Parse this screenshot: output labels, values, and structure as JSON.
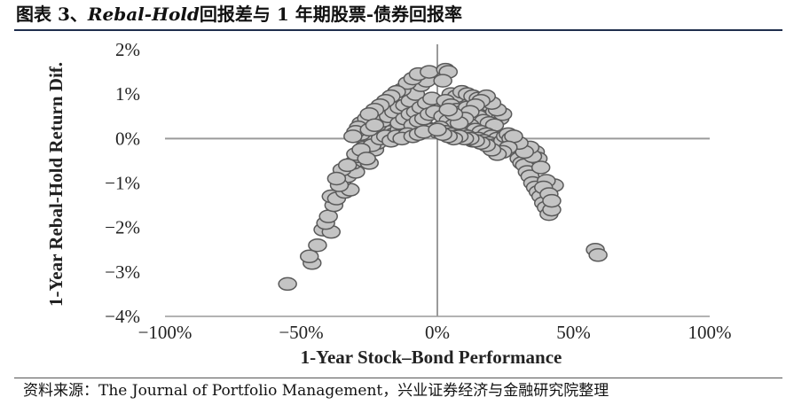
{
  "figure": {
    "title_prefix": "图表 3、",
    "title_italic": "Rebal-Hold",
    "title_suffix": "回报差与 1 年期股票-债券回报率",
    "source": "资料来源：The Journal of Portfolio Management，兴业证券经济与金融研究院整理"
  },
  "colors": {
    "marker_fill": "#c4c4c4",
    "marker_stroke": "#5a5a5a",
    "axis": "#9a9a9a",
    "rule": "#1f2e4d"
  },
  "chart_data": {
    "type": "scatter",
    "title": "",
    "xlabel": "1-Year Stock–Bond Performance",
    "ylabel": "1-Year Rebal-Hold Return Dif.",
    "xlim": [
      -100,
      100
    ],
    "ylim": [
      -4,
      2
    ],
    "xticks": [
      -100,
      -50,
      0,
      50,
      100
    ],
    "xtick_labels": [
      "−100%",
      "−50%",
      "0%",
      "50%",
      "100%"
    ],
    "yticks": [
      2,
      1,
      0,
      -1,
      -2,
      -3,
      -4
    ],
    "ytick_labels": [
      "2%",
      "1%",
      "0%",
      "−1%",
      "−2%",
      "−3%",
      "−4%"
    ],
    "grid": false,
    "legend": "none",
    "points": [
      [
        -55,
        -3.27
      ],
      [
        -46,
        -2.8
      ],
      [
        -47,
        -2.65
      ],
      [
        -44,
        -2.4
      ],
      [
        -42,
        -2.05
      ],
      [
        -39,
        -2.1
      ],
      [
        -41,
        -1.9
      ],
      [
        -40,
        -1.75
      ],
      [
        -38,
        -1.5
      ],
      [
        -39,
        -1.3
      ],
      [
        -37,
        -1.35
      ],
      [
        -34,
        -1.2
      ],
      [
        -32,
        -1.15
      ],
      [
        -35,
        -0.95
      ],
      [
        -33,
        -0.85
      ],
      [
        -30,
        -0.75
      ],
      [
        -31,
        -0.55
      ],
      [
        -27,
        -0.5
      ],
      [
        -25,
        -0.55
      ],
      [
        -29,
        -0.4
      ],
      [
        -26,
        -0.3
      ],
      [
        -23,
        -0.25
      ],
      [
        -22,
        -0.1
      ],
      [
        -24,
        0.0
      ],
      [
        -20,
        0.05
      ],
      [
        -18,
        0.15
      ],
      [
        -16,
        0.1
      ],
      [
        -14,
        0.2
      ],
      [
        -12,
        0.15
      ],
      [
        -10,
        0.25
      ],
      [
        -8,
        0.2
      ],
      [
        -6,
        0.3
      ],
      [
        -4,
        0.25
      ],
      [
        -2,
        0.2
      ],
      [
        0,
        0.15
      ],
      [
        -27,
        -0.2
      ],
      [
        -24,
        -0.15
      ],
      [
        -21,
        0.0
      ],
      [
        -19,
        0.05
      ],
      [
        -17,
        -0.05
      ],
      [
        -15,
        0.05
      ],
      [
        -28,
        0.35
      ],
      [
        -26,
        0.45
      ],
      [
        -24,
        0.55
      ],
      [
        -22,
        0.3
      ],
      [
        -20,
        0.4
      ],
      [
        -18,
        0.5
      ],
      [
        -16,
        0.6
      ],
      [
        -14,
        0.7
      ],
      [
        -12,
        0.75
      ],
      [
        -10,
        0.85
      ],
      [
        -8,
        1.0
      ],
      [
        -6,
        1.2
      ],
      [
        -4,
        1.3
      ],
      [
        -13,
        1.1
      ],
      [
        -11,
        1.25
      ],
      [
        -9,
        1.35
      ],
      [
        -7,
        1.45
      ],
      [
        -3,
        1.5
      ],
      [
        -15,
        1.05
      ],
      [
        -17,
        0.95
      ],
      [
        -19,
        0.85
      ],
      [
        -21,
        0.75
      ],
      [
        -23,
        0.65
      ],
      [
        -25,
        0.55
      ],
      [
        -14,
        0.35
      ],
      [
        -12,
        0.45
      ],
      [
        -10,
        0.55
      ],
      [
        -8,
        0.6
      ],
      [
        -6,
        0.7
      ],
      [
        -4,
        0.8
      ],
      [
        -2,
        0.9
      ],
      [
        -9,
        0.3
      ],
      [
        -7,
        0.4
      ],
      [
        -5,
        0.45
      ],
      [
        -3,
        0.55
      ],
      [
        -1,
        0.6
      ],
      [
        -11,
        0.1
      ],
      [
        -13,
        0.0
      ],
      [
        -9,
        0.05
      ],
      [
        -7,
        0.1
      ],
      [
        -5,
        0.15
      ],
      [
        -28,
        0.1
      ],
      [
        -29,
        0.25
      ],
      [
        -30,
        0.15
      ],
      [
        -31,
        0.05
      ],
      [
        -25,
        0.2
      ],
      [
        -23,
        0.3
      ],
      [
        -35,
        -0.7
      ],
      [
        -36,
        -1.05
      ],
      [
        -33,
        -0.6
      ],
      [
        -30,
        -0.35
      ],
      [
        -28,
        -0.25
      ],
      [
        -26,
        -0.45
      ],
      [
        -37,
        -0.9
      ],
      [
        3,
        1.55
      ],
      [
        4,
        1.5
      ],
      [
        2,
        1.3
      ],
      [
        5,
        1.0
      ],
      [
        7,
        0.95
      ],
      [
        9,
        1.05
      ],
      [
        11,
        1.0
      ],
      [
        13,
        0.95
      ],
      [
        15,
        0.9
      ],
      [
        17,
        0.8
      ],
      [
        19,
        0.75
      ],
      [
        21,
        0.6
      ],
      [
        23,
        0.45
      ],
      [
        3,
        0.85
      ],
      [
        5,
        0.75
      ],
      [
        7,
        0.65
      ],
      [
        9,
        0.6
      ],
      [
        11,
        0.7
      ],
      [
        13,
        0.55
      ],
      [
        15,
        0.5
      ],
      [
        17,
        0.4
      ],
      [
        19,
        0.35
      ],
      [
        21,
        0.3
      ],
      [
        2,
        0.5
      ],
      [
        4,
        0.4
      ],
      [
        6,
        0.3
      ],
      [
        8,
        0.2
      ],
      [
        10,
        0.25
      ],
      [
        12,
        0.3
      ],
      [
        14,
        0.2
      ],
      [
        16,
        0.15
      ],
      [
        18,
        0.1
      ],
      [
        20,
        0.05
      ],
      [
        22,
        0.0
      ],
      [
        1,
        0.25
      ],
      [
        3,
        0.15
      ],
      [
        5,
        0.1
      ],
      [
        7,
        0.05
      ],
      [
        9,
        0.1
      ],
      [
        11,
        0.05
      ],
      [
        13,
        -0.05
      ],
      [
        15,
        0.0
      ],
      [
        17,
        -0.05
      ],
      [
        19,
        -0.1
      ],
      [
        21,
        -0.15
      ],
      [
        23,
        -0.2
      ],
      [
        24,
        -0.05
      ],
      [
        25,
        0.05
      ],
      [
        26,
        0.1
      ],
      [
        27,
        0.0
      ],
      [
        28,
        -0.15
      ],
      [
        29,
        -0.3
      ],
      [
        30,
        -0.45
      ],
      [
        31,
        -0.55
      ],
      [
        32,
        -0.6
      ],
      [
        33,
        -0.75
      ],
      [
        34,
        -0.85
      ],
      [
        35,
        -1.0
      ],
      [
        36,
        -1.1
      ],
      [
        37,
        -1.2
      ],
      [
        38,
        -1.3
      ],
      [
        39,
        -1.45
      ],
      [
        40,
        -1.55
      ],
      [
        41,
        -1.7
      ],
      [
        42,
        -1.6
      ],
      [
        43,
        -1.05
      ],
      [
        36,
        -0.3
      ],
      [
        37,
        -0.45
      ],
      [
        38,
        -0.65
      ],
      [
        35,
        -0.4
      ],
      [
        34,
        -0.2
      ],
      [
        32,
        -0.3
      ],
      [
        30,
        -0.1
      ],
      [
        28,
        0.05
      ],
      [
        26,
        -0.2
      ],
      [
        24,
        -0.3
      ],
      [
        22,
        -0.35
      ],
      [
        20,
        -0.25
      ],
      [
        18,
        -0.15
      ],
      [
        16,
        -0.1
      ],
      [
        14,
        -0.05
      ],
      [
        12,
        0.0
      ],
      [
        10,
        0.0
      ],
      [
        8,
        0.05
      ],
      [
        6,
        0.0
      ],
      [
        4,
        0.05
      ],
      [
        2,
        0.1
      ],
      [
        0,
        0.2
      ],
      [
        24,
        0.55
      ],
      [
        22,
        0.65
      ],
      [
        20,
        0.8
      ],
      [
        18,
        0.95
      ],
      [
        16,
        0.85
      ],
      [
        14,
        0.75
      ],
      [
        12,
        0.6
      ],
      [
        10,
        0.45
      ],
      [
        8,
        0.35
      ],
      [
        6,
        0.55
      ],
      [
        4,
        0.65
      ],
      [
        40,
        -0.95
      ],
      [
        39,
        -1.1
      ],
      [
        41,
        -1.25
      ],
      [
        42,
        -1.4
      ],
      [
        58,
        -2.5
      ],
      [
        59,
        -2.62
      ]
    ]
  }
}
